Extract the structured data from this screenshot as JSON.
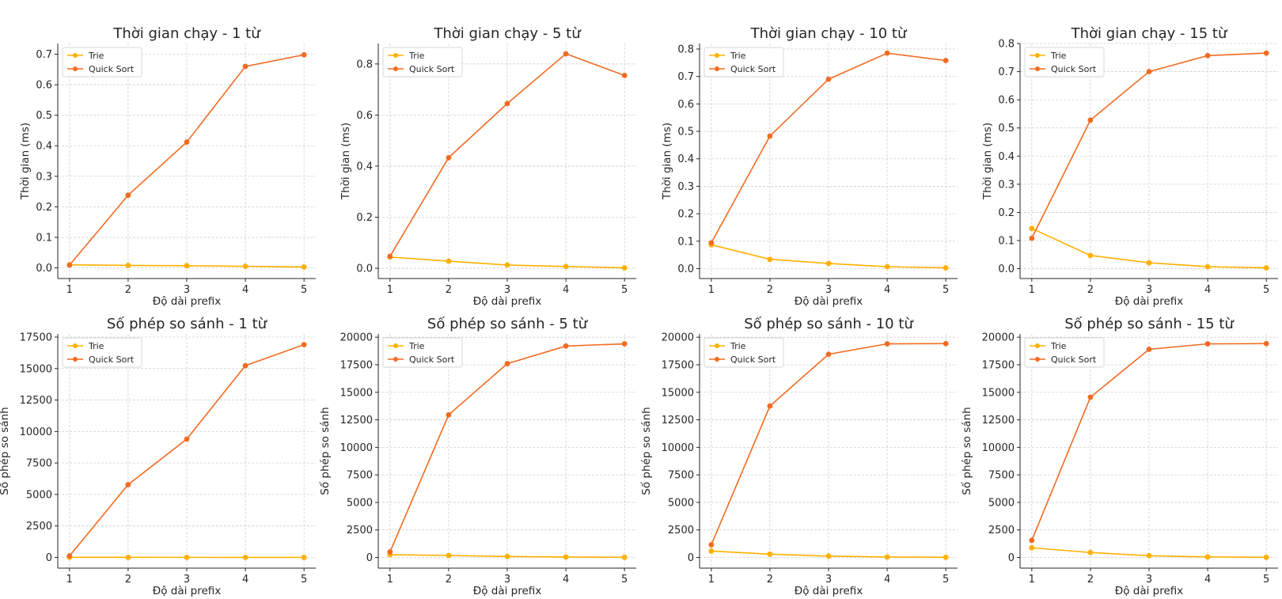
{
  "chart_data": [
    {
      "type": "line",
      "title": "Thời gian chạy - 1 từ",
      "xlabel": "Độ dài prefix",
      "ylabel": "Thời gian (ms)",
      "x": [
        1,
        2,
        3,
        4,
        5
      ],
      "ylim": [
        -0.035,
        0.735
      ],
      "yticks": [
        0,
        0.1,
        0.2,
        0.3,
        0.4,
        0.5,
        0.6,
        0.7
      ],
      "yticklabels": [
        "0.0",
        "0.1",
        "0.2",
        "0.3",
        "0.4",
        "0.5",
        "0.6",
        "0.7"
      ],
      "grid": true,
      "legend": "top-left",
      "series": [
        {
          "name": "Trie",
          "color": "#ffb000",
          "values": [
            0.01,
            0.008,
            0.007,
            0.005,
            0.003
          ]
        },
        {
          "name": "Quick Sort",
          "color": "#f26b21",
          "values": [
            0.009,
            0.238,
            0.412,
            0.66,
            0.698
          ]
        }
      ]
    },
    {
      "type": "line",
      "title": "Thời gian chạy - 5 từ",
      "xlabel": "Độ dài prefix",
      "ylabel": "Thời gian (ms)",
      "x": [
        1,
        2,
        3,
        4,
        5
      ],
      "ylim": [
        -0.04,
        0.88
      ],
      "yticks": [
        0,
        0.2,
        0.4,
        0.6,
        0.8
      ],
      "yticklabels": [
        "0.0",
        "0.2",
        "0.4",
        "0.6",
        "0.8"
      ],
      "grid": true,
      "legend": "top-left",
      "series": [
        {
          "name": "Trie",
          "color": "#ffb000",
          "values": [
            0.044,
            0.028,
            0.013,
            0.007,
            0.002
          ]
        },
        {
          "name": "Quick Sort",
          "color": "#f26b21",
          "values": [
            0.047,
            0.433,
            0.645,
            0.84,
            0.755
          ]
        }
      ]
    },
    {
      "type": "line",
      "title": "Thời gian chạy - 10 từ",
      "xlabel": "Độ dài prefix",
      "ylabel": "Thời gian (ms)",
      "x": [
        1,
        2,
        3,
        4,
        5
      ],
      "ylim": [
        -0.036,
        0.82
      ],
      "yticks": [
        0,
        0.1,
        0.2,
        0.3,
        0.4,
        0.5,
        0.6,
        0.7,
        0.8
      ],
      "yticklabels": [
        "0.0",
        "0.1",
        "0.2",
        "0.3",
        "0.4",
        "0.5",
        "0.6",
        "0.7",
        "0.8"
      ],
      "grid": true,
      "legend": "top-left",
      "series": [
        {
          "name": "Trie",
          "color": "#ffb000",
          "values": [
            0.087,
            0.034,
            0.019,
            0.007,
            0.003
          ]
        },
        {
          "name": "Quick Sort",
          "color": "#f26b21",
          "values": [
            0.094,
            0.483,
            0.69,
            0.785,
            0.758
          ]
        }
      ]
    },
    {
      "type": "line",
      "title": "Thời gian chạy - 15 từ",
      "xlabel": "Độ dài prefix",
      "ylabel": "Thời gian (ms)",
      "x": [
        1,
        2,
        3,
        4,
        5
      ],
      "ylim": [
        -0.035,
        0.8
      ],
      "yticks": [
        0,
        0.1,
        0.2,
        0.3,
        0.4,
        0.5,
        0.6,
        0.7,
        0.8
      ],
      "yticklabels": [
        "0.0",
        "0.1",
        "0.2",
        "0.3",
        "0.4",
        "0.5",
        "0.6",
        "0.7",
        "0.8"
      ],
      "grid": true,
      "legend": "top-left",
      "series": [
        {
          "name": "Trie",
          "color": "#ffb000",
          "values": [
            0.143,
            0.047,
            0.021,
            0.007,
            0.003
          ]
        },
        {
          "name": "Quick Sort",
          "color": "#f26b21",
          "values": [
            0.108,
            0.528,
            0.7,
            0.757,
            0.766
          ]
        }
      ]
    },
    {
      "type": "line",
      "title": "Số phép so sánh - 1 từ",
      "xlabel": "Độ dài prefix",
      "ylabel": "Số phép so sánh",
      "x": [
        1,
        2,
        3,
        4,
        5
      ],
      "ylim": [
        -850,
        17750
      ],
      "yticks": [
        0,
        2500,
        5000,
        7500,
        10000,
        12500,
        15000,
        17500
      ],
      "yticklabels": [
        "0",
        "2500",
        "5000",
        "7500",
        "10000",
        "12500",
        "15000",
        "17500"
      ],
      "grid": true,
      "legend": "top-left",
      "series": [
        {
          "name": "Trie",
          "color": "#ffb000",
          "values": [
            10,
            8,
            6,
            5,
            3
          ]
        },
        {
          "name": "Quick Sort",
          "color": "#f26b21",
          "values": [
            120,
            5780,
            9400,
            15230,
            16900
          ]
        }
      ]
    },
    {
      "type": "line",
      "title": "Số phép so sánh - 5 từ",
      "xlabel": "Độ dài prefix",
      "ylabel": "Số phép so sánh",
      "x": [
        1,
        2,
        3,
        4,
        5
      ],
      "ylim": [
        -970,
        20300
      ],
      "yticks": [
        0,
        2500,
        5000,
        7500,
        10000,
        12500,
        15000,
        17500,
        20000
      ],
      "yticklabels": [
        "0",
        "2500",
        "5000",
        "7500",
        "10000",
        "12500",
        "15000",
        "17500",
        "20000"
      ],
      "grid": true,
      "legend": "top-left",
      "series": [
        {
          "name": "Trie",
          "color": "#ffb000",
          "values": [
            250,
            180,
            90,
            40,
            15
          ]
        },
        {
          "name": "Quick Sort",
          "color": "#f26b21",
          "values": [
            500,
            12950,
            17600,
            19200,
            19400
          ]
        }
      ]
    },
    {
      "type": "line",
      "title": "Số phép so sánh - 10 từ",
      "xlabel": "Độ dài prefix",
      "ylabel": "Số phép so sánh",
      "x": [
        1,
        2,
        3,
        4,
        5
      ],
      "ylim": [
        -970,
        20300
      ],
      "yticks": [
        0,
        2500,
        5000,
        7500,
        10000,
        12500,
        15000,
        17500,
        20000
      ],
      "yticklabels": [
        "0",
        "2500",
        "5000",
        "7500",
        "10000",
        "12500",
        "15000",
        "17500",
        "20000"
      ],
      "grid": true,
      "legend": "top-left",
      "series": [
        {
          "name": "Trie",
          "color": "#ffb000",
          "values": [
            580,
            300,
            120,
            40,
            15
          ]
        },
        {
          "name": "Quick Sort",
          "color": "#f26b21",
          "values": [
            1150,
            13750,
            18450,
            19400,
            19420
          ]
        }
      ]
    },
    {
      "type": "line",
      "title": "Số phép so sánh - 15 từ",
      "xlabel": "Độ dài prefix",
      "ylabel": "Số phép so sánh",
      "x": [
        1,
        2,
        3,
        4,
        5
      ],
      "ylim": [
        -970,
        20300
      ],
      "yticks": [
        0,
        2500,
        5000,
        7500,
        10000,
        12500,
        15000,
        17500,
        20000
      ],
      "yticklabels": [
        "0",
        "2500",
        "5000",
        "7500",
        "10000",
        "12500",
        "15000",
        "17500",
        "20000"
      ],
      "grid": true,
      "legend": "top-left",
      "series": [
        {
          "name": "Trie",
          "color": "#ffb000",
          "values": [
            880,
            450,
            160,
            50,
            15
          ]
        },
        {
          "name": "Quick Sort",
          "color": "#f26b21",
          "values": [
            1550,
            14550,
            18900,
            19400,
            19420
          ]
        }
      ]
    }
  ]
}
